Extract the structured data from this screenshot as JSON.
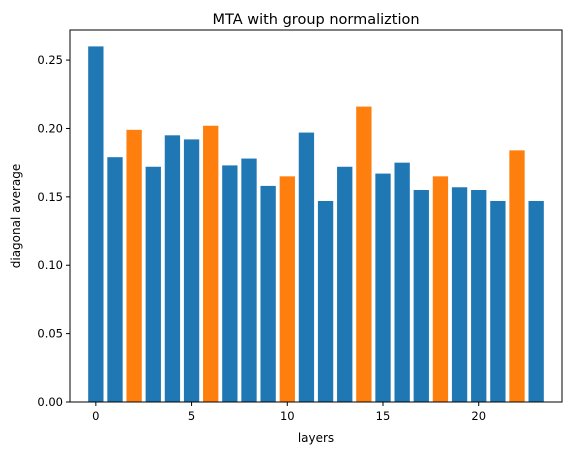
{
  "chart_data": {
    "type": "bar",
    "title": "MTA with group normaliztion",
    "xlabel": "layers",
    "ylabel": "diagonal average",
    "x": [
      0,
      1,
      2,
      3,
      4,
      5,
      6,
      7,
      8,
      9,
      10,
      11,
      12,
      13,
      14,
      15,
      16,
      17,
      18,
      19,
      20,
      21,
      22,
      23
    ],
    "values": [
      0.26,
      0.179,
      0.199,
      0.172,
      0.195,
      0.192,
      0.202,
      0.173,
      0.178,
      0.158,
      0.165,
      0.197,
      0.147,
      0.172,
      0.216,
      0.167,
      0.175,
      0.155,
      0.165,
      0.157,
      0.155,
      0.147,
      0.184,
      0.147
    ],
    "highlight_layers": [
      2,
      6,
      10,
      14,
      18,
      22
    ],
    "colors": {
      "default": "#1f77b4",
      "highlight": "#ff7f0e"
    },
    "xlim": [
      -1.35,
      24.35
    ],
    "ylim": [
      0,
      0.272
    ],
    "xticks": [
      0,
      5,
      10,
      15,
      20
    ],
    "yticks": [
      0.0,
      0.05,
      0.1,
      0.15,
      0.2,
      0.25
    ],
    "xtick_labels": [
      "0",
      "5",
      "10",
      "15",
      "20"
    ],
    "ytick_labels": [
      "0.00",
      "0.05",
      "0.10",
      "0.15",
      "0.20",
      "0.25"
    ],
    "grid": false,
    "legend": "none"
  }
}
